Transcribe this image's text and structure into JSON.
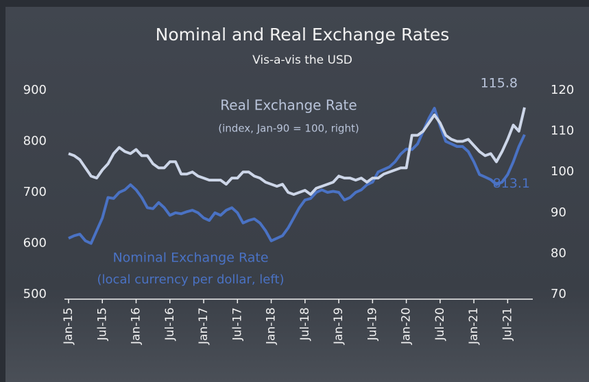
{
  "chart_data": {
    "type": "line",
    "title": "Nominal and Real Exchange Rates",
    "subtitle": "Vis-a-vis the USD",
    "categories": [
      "Jan-15",
      null,
      null,
      null,
      null,
      null,
      "Jul-15",
      null,
      null,
      null,
      null,
      null,
      "Jan-16",
      null,
      null,
      null,
      null,
      null,
      "Jul-16",
      null,
      null,
      null,
      null,
      null,
      "Jan-17",
      null,
      null,
      null,
      null,
      null,
      "Jul-17",
      null,
      null,
      null,
      null,
      null,
      "Jan-18",
      null,
      null,
      null,
      null,
      null,
      "Jul-18",
      null,
      null,
      null,
      null,
      null,
      "Jan-19",
      null,
      null,
      null,
      null,
      null,
      "Jul-19",
      null,
      null,
      null,
      null,
      null,
      "Jan-20",
      null,
      null,
      null,
      null,
      null,
      "Jul-20",
      null,
      null,
      null,
      null,
      null,
      "Jan-21",
      null,
      null,
      null,
      null,
      null,
      "Jul-21",
      null,
      null,
      null
    ],
    "series": [
      {
        "name": "Real Exchange Rate",
        "note": "(index, Jan-90 = 100, right)",
        "color": "#cdd6e8",
        "axis": "y2",
        "values": [
          104.5,
          104,
          103,
          101,
          99,
          98.5,
          100.5,
          102,
          104.5,
          106,
          105,
          104.5,
          105.5,
          104,
          104,
          102,
          101,
          101,
          102.5,
          102.5,
          99.5,
          99.5,
          100,
          99,
          98.5,
          98,
          98,
          98,
          97,
          98.5,
          98.5,
          100,
          100,
          99,
          98.5,
          97.5,
          97,
          96.5,
          97,
          95,
          94.5,
          95,
          95.5,
          94.5,
          96,
          96.5,
          97,
          97.5,
          99,
          98.5,
          98.5,
          98,
          98.5,
          97.5,
          98.5,
          98.5,
          99.5,
          100,
          100.5,
          101,
          101,
          109,
          109,
          110,
          112,
          114,
          112,
          109,
          108,
          107.5,
          107.5,
          108,
          106.5,
          105,
          104,
          104.5,
          102.5,
          105,
          108,
          111.5,
          110,
          115.8
        ]
      },
      {
        "name": "Nominal Exchange Rate",
        "note": "(local currency per dollar, left)",
        "color": "#4a72c4",
        "values": [
          610,
          615,
          618,
          605,
          600,
          625,
          650,
          690,
          688,
          700,
          705,
          715,
          705,
          690,
          670,
          668,
          680,
          670,
          655,
          660,
          658,
          662,
          665,
          660,
          650,
          645,
          660,
          655,
          665,
          670,
          660,
          640,
          645,
          648,
          640,
          625,
          605,
          610,
          615,
          630,
          650,
          670,
          685,
          688,
          700,
          705,
          700,
          702,
          700,
          685,
          690,
          700,
          705,
          715,
          720,
          740,
          745,
          750,
          760,
          775,
          785,
          784,
          795,
          820,
          845,
          865,
          830,
          800,
          795,
          790,
          790,
          780,
          760,
          735,
          730,
          725,
          715,
          720,
          735,
          760,
          790,
          813.1
        ]
      }
    ],
    "ylim": [
      500,
      900
    ],
    "yticks": [
      500,
      600,
      700,
      800,
      900
    ],
    "y2lim": [
      70,
      120
    ],
    "y2ticks": [
      70,
      80,
      90,
      100,
      110,
      120
    ],
    "grid": false
  }
}
